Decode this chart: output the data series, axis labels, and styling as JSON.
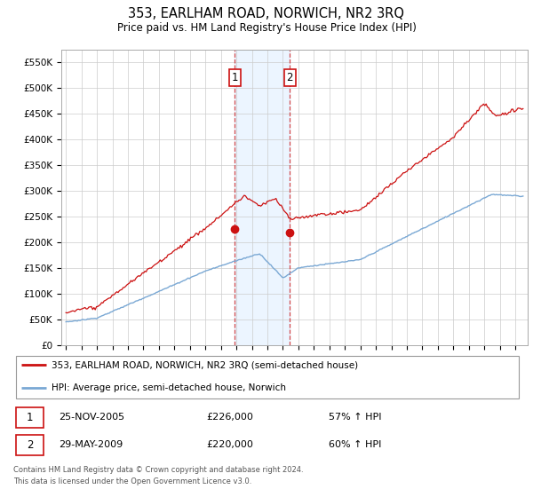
{
  "title": "353, EARLHAM ROAD, NORWICH, NR2 3RQ",
  "subtitle": "Price paid vs. HM Land Registry's House Price Index (HPI)",
  "ylabel_ticks": [
    "£0",
    "£50K",
    "£100K",
    "£150K",
    "£200K",
    "£250K",
    "£300K",
    "£350K",
    "£400K",
    "£450K",
    "£500K",
    "£550K"
  ],
  "ylabel_values": [
    0,
    50000,
    100000,
    150000,
    200000,
    250000,
    300000,
    350000,
    400000,
    450000,
    500000,
    550000
  ],
  "ylim": [
    0,
    575000
  ],
  "xlim_start": 1994.7,
  "xlim_end": 2024.8,
  "hpi_color": "#7aa8d4",
  "price_color": "#cc1111",
  "marker_color": "#cc1111",
  "shade_color": "#ddeeff",
  "shade_alpha": 0.55,
  "vline_color": "#cc1111",
  "sale1_year": 2005.9,
  "sale1_price": 226000,
  "sale2_year": 2009.45,
  "sale2_price": 220000,
  "sale1_label": "1",
  "sale2_label": "2",
  "legend_line1": "353, EARLHAM ROAD, NORWICH, NR2 3RQ (semi-detached house)",
  "legend_line2": "HPI: Average price, semi-detached house, Norwich",
  "footnote1": "Contains HM Land Registry data © Crown copyright and database right 2024.",
  "footnote2": "This data is licensed under the Open Government Licence v3.0.",
  "table_row1": [
    "1",
    "25-NOV-2005",
    "£226,000",
    "57% ↑ HPI"
  ],
  "table_row2": [
    "2",
    "29-MAY-2009",
    "£220,000",
    "60% ↑ HPI"
  ],
  "background_color": "#ffffff",
  "grid_color": "#cccccc"
}
